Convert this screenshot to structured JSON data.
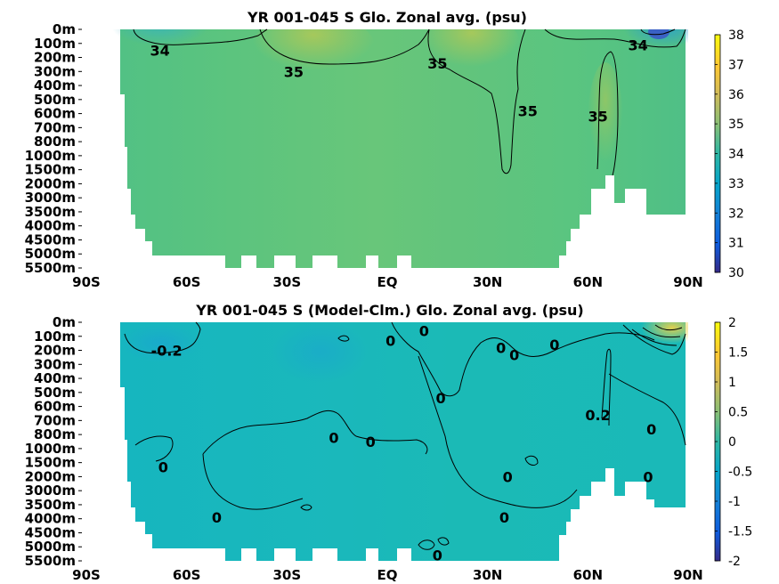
{
  "chart_data": [
    {
      "type": "heatmap",
      "title": "YR 001-045 S Glo. Zonal avg. (psu)",
      "x_ticks": [
        "90S",
        "60S",
        "30S",
        "EQ",
        "30N",
        "60N",
        "90N"
      ],
      "x_range": [
        -90,
        90
      ],
      "depth_ticks": [
        "0m",
        "100m",
        "200m",
        "300m",
        "400m",
        "500m",
        "600m",
        "700m",
        "800m",
        "1000m",
        "1500m",
        "2000m",
        "3000m",
        "3500m",
        "4000m",
        "4500m",
        "5000m",
        "5500m"
      ],
      "colorbar": {
        "min": 30,
        "max": 38,
        "ticks": [
          "30",
          "31",
          "32",
          "33",
          "34",
          "35",
          "36",
          "37",
          "38"
        ]
      },
      "contour_labels": [
        {
          "text": "34",
          "lat": -68,
          "depth_index": 1.5
        },
        {
          "text": "35",
          "lat": -28,
          "depth_index": 3.0
        },
        {
          "text": "35",
          "lat": 15,
          "depth_index": 2.4
        },
        {
          "text": "35",
          "lat": 42,
          "depth_index": 5.8
        },
        {
          "text": "35",
          "lat": 63,
          "depth_index": 6.2
        },
        {
          "text": "34",
          "lat": 75,
          "depth_index": 1.1
        }
      ],
      "grid": false
    },
    {
      "type": "heatmap",
      "title": "YR 001-045 S (Model-Clm.) Glo. Zonal avg. (psu)",
      "x_ticks": [
        "90S",
        "60S",
        "30S",
        "EQ",
        "30N",
        "60N",
        "90N"
      ],
      "x_range": [
        -90,
        90
      ],
      "depth_ticks": [
        "0m",
        "100m",
        "200m",
        "300m",
        "400m",
        "500m",
        "600m",
        "700m",
        "800m",
        "1000m",
        "1500m",
        "2000m",
        "3000m",
        "3500m",
        "4000m",
        "4500m",
        "5000m",
        "5500m"
      ],
      "colorbar": {
        "min": -2,
        "max": 2,
        "ticks": [
          "2",
          "1.5",
          "1",
          "0.5",
          "0",
          "-0.5",
          "-1",
          "-1.5",
          "-2"
        ]
      },
      "contour_labels": [
        {
          "text": "-0.2",
          "lat": -66,
          "depth_index": 2.0
        },
        {
          "text": "0",
          "lat": 1,
          "depth_index": 1.3
        },
        {
          "text": "0",
          "lat": 11,
          "depth_index": 0.6
        },
        {
          "text": "0",
          "lat": 34,
          "depth_index": 1.8
        },
        {
          "text": "0",
          "lat": 38,
          "depth_index": 2.3
        },
        {
          "text": "0",
          "lat": 50,
          "depth_index": 1.6
        },
        {
          "text": "0",
          "lat": 16,
          "depth_index": 5.4
        },
        {
          "text": "0.2",
          "lat": 63,
          "depth_index": 6.6
        },
        {
          "text": "0",
          "lat": -16,
          "depth_index": 8.2
        },
        {
          "text": "0",
          "lat": -5,
          "depth_index": 8.5
        },
        {
          "text": "0",
          "lat": -67,
          "depth_index": 10.3
        },
        {
          "text": "0",
          "lat": 36,
          "depth_index": 11.0
        },
        {
          "text": "0",
          "lat": -51,
          "depth_index": 13.9
        },
        {
          "text": "0",
          "lat": 35,
          "depth_index": 13.9
        },
        {
          "text": "0",
          "lat": 79,
          "depth_index": 7.6
        },
        {
          "text": "0",
          "lat": 78,
          "depth_index": 11.0
        },
        {
          "text": "0",
          "lat": 15,
          "depth_index": 16.6
        }
      ],
      "grid": false
    }
  ]
}
